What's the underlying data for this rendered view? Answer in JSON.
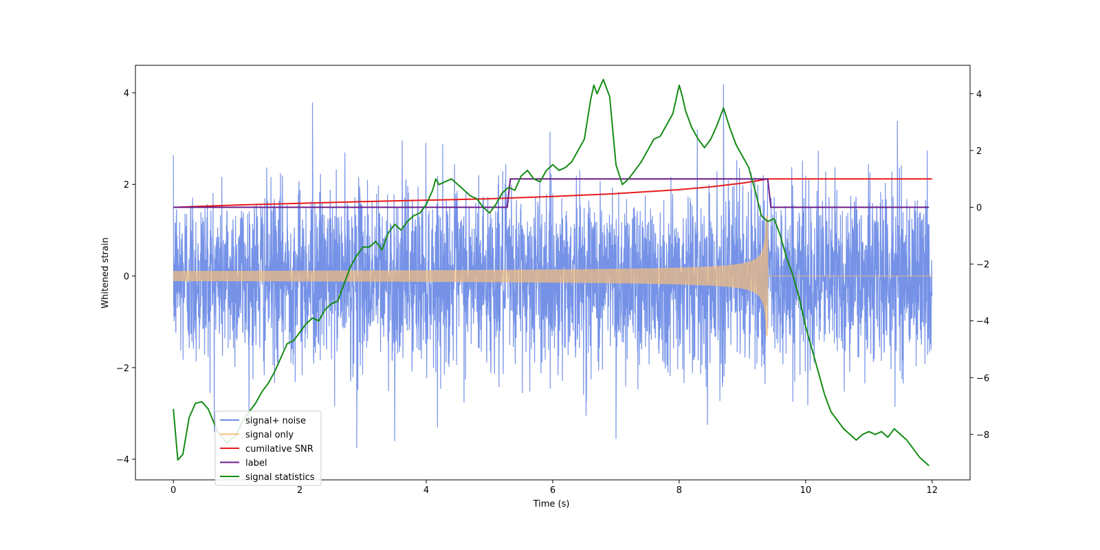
{
  "chart_data": {
    "type": "line",
    "xlabel": "Time (s)",
    "ylabel": "Whitened strain",
    "xlim": [
      -0.6,
      12.6
    ],
    "ylim": [
      -4.45,
      4.6
    ],
    "ylim_right": [
      -9.6,
      5.0
    ],
    "xticks": [
      0,
      2,
      4,
      6,
      8,
      10,
      12
    ],
    "xtick_labels": [
      "0",
      "2",
      "4",
      "6",
      "8",
      "10",
      "12"
    ],
    "yticks": [
      -4,
      -2,
      0,
      2,
      4
    ],
    "ytick_labels": [
      "−4",
      "−2",
      "0",
      "2",
      "4"
    ],
    "yticks_right": [
      -8,
      -6,
      -4,
      -2,
      0,
      2,
      4
    ],
    "ytick_labels_right": [
      "−8",
      "−6",
      "−4",
      "−2",
      "0",
      "2",
      "4"
    ],
    "legend_position": "lower-left",
    "series": [
      {
        "name": "signal+ noise",
        "color": "#6e8ce6",
        "axis": "left",
        "description": "whitened noise plus chirp signal, 0 to 12 s",
        "x_range": [
          0,
          12
        ],
        "noise_std": 0.95,
        "notable_peaks": [
          [
            2.2,
            3.78
          ],
          [
            8.7,
            4.18
          ],
          [
            11.45,
            3.38
          ],
          [
            2.9,
            -3.75
          ],
          [
            3.5,
            -3.6
          ],
          [
            7.0,
            -3.55
          ]
        ]
      },
      {
        "name": "signal only",
        "color": "#f5bf7a",
        "axis": "left",
        "description": "chirp waveform growing in amplitude until merger at 9.4 s, then zero",
        "x_range": [
          0,
          12
        ],
        "merger_time": 9.4,
        "amplitude_start": 0.1,
        "amplitude_peak": 1.3
      },
      {
        "name": "cumilative SNR",
        "color": "#e8191b",
        "axis": "right",
        "x": [
          0,
          1,
          2,
          3,
          4,
          5,
          6,
          7,
          8,
          8.5,
          9,
          9.2,
          9.4,
          12
        ],
        "y": [
          0.0,
          0.08,
          0.14,
          0.2,
          0.25,
          0.3,
          0.38,
          0.48,
          0.62,
          0.72,
          0.85,
          0.92,
          1.0,
          1.0
        ]
      },
      {
        "name": "label",
        "color": "#6a1a8a",
        "axis": "right",
        "x": [
          0,
          5.28,
          5.33,
          9.4,
          9.45,
          11.95
        ],
        "y": [
          0,
          0,
          1,
          1,
          0,
          0
        ]
      },
      {
        "name": "signal statistics",
        "color": "#138a13",
        "axis": "right",
        "x": [
          0.0,
          0.07,
          0.15,
          0.25,
          0.35,
          0.45,
          0.55,
          0.7,
          0.85,
          1.0,
          1.1,
          1.2,
          1.3,
          1.4,
          1.5,
          1.6,
          1.7,
          1.8,
          1.9,
          2.0,
          2.1,
          2.2,
          2.3,
          2.4,
          2.5,
          2.6,
          2.7,
          2.8,
          2.9,
          3.0,
          3.1,
          3.2,
          3.3,
          3.4,
          3.5,
          3.6,
          3.7,
          3.8,
          3.9,
          4.0,
          4.1,
          4.15,
          4.2,
          4.3,
          4.4,
          4.5,
          4.6,
          4.7,
          4.8,
          4.9,
          5.0,
          5.1,
          5.2,
          5.3,
          5.4,
          5.5,
          5.6,
          5.7,
          5.8,
          5.9,
          6.0,
          6.1,
          6.2,
          6.3,
          6.4,
          6.5,
          6.6,
          6.65,
          6.7,
          6.8,
          6.9,
          7.0,
          7.1,
          7.2,
          7.3,
          7.4,
          7.5,
          7.6,
          7.7,
          7.8,
          7.9,
          8.0,
          8.05,
          8.1,
          8.2,
          8.3,
          8.4,
          8.5,
          8.6,
          8.7,
          8.8,
          8.9,
          9.0,
          9.1,
          9.2,
          9.3,
          9.4,
          9.5,
          9.6,
          9.7,
          9.8,
          9.9,
          10.0,
          10.1,
          10.2,
          10.3,
          10.4,
          10.5,
          10.6,
          10.7,
          10.8,
          10.9,
          11.0,
          11.1,
          11.2,
          11.3,
          11.4,
          11.5,
          11.6,
          11.7,
          11.8,
          11.9,
          11.95
        ],
        "y": [
          -7.1,
          -8.9,
          -8.7,
          -7.4,
          -6.9,
          -6.85,
          -7.1,
          -7.9,
          -8.3,
          -8.0,
          -7.5,
          -7.2,
          -6.9,
          -6.5,
          -6.2,
          -5.8,
          -5.3,
          -4.8,
          -4.7,
          -4.4,
          -4.1,
          -3.9,
          -4.0,
          -3.6,
          -3.4,
          -3.3,
          -2.7,
          -2.1,
          -1.7,
          -1.4,
          -1.4,
          -1.2,
          -1.5,
          -0.9,
          -0.6,
          -0.8,
          -0.5,
          -0.3,
          -0.2,
          0.1,
          0.6,
          1.0,
          0.8,
          0.9,
          1.0,
          0.8,
          0.6,
          0.4,
          0.3,
          0.0,
          -0.2,
          0.1,
          0.5,
          0.7,
          0.6,
          1.1,
          1.3,
          1.0,
          0.9,
          1.3,
          1.5,
          1.3,
          1.4,
          1.6,
          2.0,
          2.4,
          3.8,
          4.3,
          4.0,
          4.5,
          3.9,
          1.5,
          0.8,
          1.0,
          1.3,
          1.6,
          2.0,
          2.4,
          2.5,
          2.9,
          3.3,
          4.3,
          3.9,
          3.4,
          2.8,
          2.4,
          2.1,
          2.4,
          2.9,
          3.5,
          2.8,
          2.2,
          1.8,
          1.4,
          0.6,
          -0.3,
          -0.5,
          -0.4,
          -1.0,
          -1.8,
          -2.4,
          -3.2,
          -4.2,
          -5.0,
          -5.8,
          -6.6,
          -7.2,
          -7.5,
          -7.8,
          -8.0,
          -8.2,
          -8.0,
          -7.9,
          -8.0,
          -7.9,
          -8.1,
          -7.8,
          -8.0,
          -8.2,
          -8.5,
          -8.8,
          -9.0,
          -9.1
        ]
      }
    ]
  }
}
